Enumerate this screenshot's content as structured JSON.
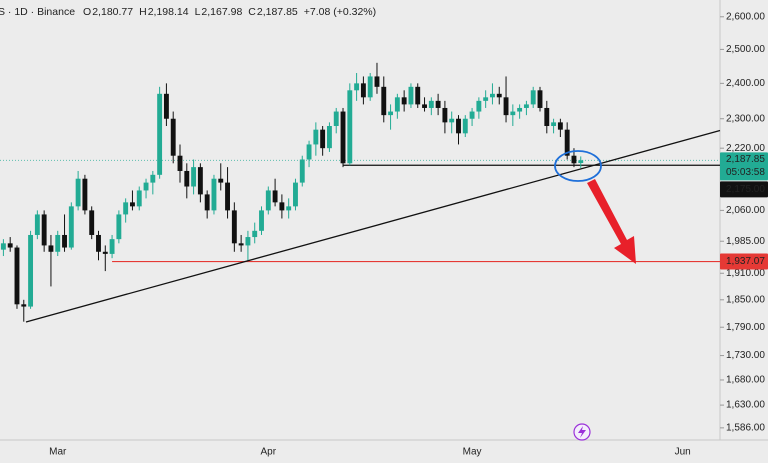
{
  "chart_data": {
    "type": "candlestick",
    "header": {
      "symbol": "S · 1D · Binance",
      "items": [
        {
          "key": "O",
          "value": "2,180.77"
        },
        {
          "key": "H",
          "value": "2,198.14"
        },
        {
          "key": "L",
          "value": "2,167.98"
        },
        {
          "key": "C",
          "value": "2,187.85"
        }
      ],
      "change": "+7.08 (+0.32%)"
    },
    "categories": [
      null,
      null,
      null,
      null,
      null,
      null,
      null,
      null,
      "Mar",
      null,
      null,
      null,
      null,
      null,
      null,
      null,
      null,
      null,
      null,
      null,
      null,
      null,
      null,
      null,
      null,
      null,
      null,
      null,
      null,
      null,
      null,
      null,
      null,
      null,
      null,
      null,
      null,
      null,
      null,
      "Apr",
      null,
      null,
      null,
      null,
      null,
      null,
      null,
      null,
      null,
      null,
      null,
      null,
      null,
      null,
      null,
      null,
      null,
      null,
      null,
      null,
      null,
      null,
      null,
      null,
      null,
      null,
      null,
      null,
      null,
      "May",
      null,
      null,
      null,
      null,
      null,
      null,
      null,
      null,
      null,
      null,
      null,
      null,
      null,
      null,
      null,
      null,
      null,
      null,
      null,
      null,
      null,
      null,
      null,
      null,
      null,
      null,
      null,
      null,
      null,
      null,
      "Jun",
      null,
      null,
      null,
      null,
      null
    ],
    "open": [
      1965,
      1980,
      1970,
      1840,
      1835,
      2000,
      2050,
      1975,
      1960,
      2000,
      1970,
      2070,
      2140,
      2060,
      2000,
      1960,
      1955,
      1990,
      2050,
      2080,
      2070,
      2110,
      2130,
      2150,
      2370,
      2300,
      2200,
      2160,
      2120,
      2170,
      2100,
      2060,
      2140,
      2130,
      2060,
      1980,
      1975,
      1995,
      2010,
      2060,
      2110,
      2080,
      2060,
      2070,
      2130,
      2190,
      2230,
      2270,
      2220,
      2280,
      2320,
      2180,
      2380,
      2400,
      2360,
      2420,
      2390,
      2310,
      2320,
      2360,
      2340,
      2390,
      2340,
      2330,
      2350,
      2330,
      2290,
      2300,
      2260,
      2300,
      2320,
      2350,
      2360,
      2370,
      2360,
      2310,
      2320,
      2330,
      2340,
      2380,
      2330,
      2280,
      2290,
      2270,
      2200,
      2180.77,
      null,
      null,
      null,
      null,
      null,
      null,
      null,
      null,
      null,
      null,
      null,
      null,
      null,
      null,
      null,
      null,
      null,
      null,
      null,
      null
    ],
    "high": [
      1990,
      1995,
      1975,
      1850,
      2010,
      2060,
      2060,
      2000,
      2010,
      2050,
      2080,
      2160,
      2150,
      2070,
      2010,
      1975,
      2000,
      2060,
      2090,
      2110,
      2120,
      2140,
      2160,
      2390,
      2400,
      2320,
      2230,
      2180,
      2190,
      2180,
      2110,
      2150,
      2180,
      2170,
      2080,
      2000,
      2010,
      2030,
      2070,
      2120,
      2140,
      2100,
      2090,
      2140,
      2200,
      2240,
      2290,
      2280,
      2290,
      2330,
      2330,
      2400,
      2430,
      2420,
      2430,
      2460,
      2420,
      2340,
      2370,
      2380,
      2400,
      2400,
      2360,
      2360,
      2370,
      2350,
      2320,
      2310,
      2310,
      2330,
      2360,
      2380,
      2400,
      2390,
      2420,
      2340,
      2340,
      2350,
      2390,
      2390,
      2350,
      2300,
      2300,
      2290,
      2220,
      2198.14,
      null,
      null,
      null,
      null,
      null,
      null,
      null,
      null,
      null,
      null,
      null,
      null,
      null,
      null,
      null,
      null,
      null,
      null,
      null,
      null
    ],
    "low": [
      1950,
      1960,
      1830,
      1802,
      1830,
      1990,
      1960,
      1880,
      1950,
      1960,
      1965,
      2060,
      2050,
      1990,
      1940,
      1915,
      1945,
      1980,
      2030,
      2060,
      2060,
      2090,
      2100,
      2140,
      2280,
      2180,
      2130,
      2090,
      2100,
      2080,
      2040,
      2050,
      2110,
      2040,
      1960,
      1960,
      1937,
      1980,
      2000,
      2050,
      2070,
      2040,
      2040,
      2060,
      2120,
      2170,
      2200,
      2200,
      2210,
      2260,
      2170,
      2175,
      2350,
      2340,
      2350,
      2370,
      2290,
      2270,
      2300,
      2320,
      2330,
      2330,
      2320,
      2310,
      2310,
      2260,
      2260,
      2230,
      2250,
      2280,
      2300,
      2330,
      2340,
      2340,
      2290,
      2280,
      2300,
      2310,
      2330,
      2320,
      2260,
      2260,
      2250,
      2190,
      2170,
      2167.98,
      null,
      null,
      null,
      null,
      null,
      null,
      null,
      null,
      null,
      null,
      null,
      null,
      null,
      null,
      null,
      null,
      null,
      null,
      null,
      null
    ],
    "close": [
      1980,
      1970,
      1840,
      1835,
      2000,
      2050,
      1975,
      1960,
      2000,
      1970,
      2070,
      2140,
      2060,
      2000,
      1960,
      1955,
      1990,
      2050,
      2080,
      2070,
      2110,
      2130,
      2150,
      2370,
      2300,
      2200,
      2160,
      2120,
      2170,
      2100,
      2060,
      2140,
      2130,
      2060,
      1980,
      1975,
      1995,
      2010,
      2060,
      2110,
      2080,
      2060,
      2070,
      2130,
      2190,
      2230,
      2270,
      2220,
      2280,
      2320,
      2180,
      2380,
      2400,
      2360,
      2420,
      2390,
      2310,
      2320,
      2360,
      2340,
      2390,
      2340,
      2330,
      2350,
      2330,
      2290,
      2300,
      2260,
      2300,
      2320,
      2350,
      2360,
      2370,
      2360,
      2310,
      2320,
      2330,
      2340,
      2380,
      2330,
      2280,
      2290,
      2270,
      2200,
      2180,
      2187.85,
      null,
      null,
      null,
      null,
      null,
      null,
      null,
      null,
      null,
      null,
      null,
      null,
      null,
      null,
      null,
      null,
      null,
      null,
      null,
      null
    ],
    "up_color": "#22ab94",
    "down_color": "#111111",
    "log_scale": true,
    "ylim": [
      1563,
      2653
    ],
    "yticks": [
      {
        "value": 2600,
        "label": "2,600.00"
      },
      {
        "value": 2500,
        "label": "2,500.00"
      },
      {
        "value": 2400,
        "label": "2,400.00"
      },
      {
        "value": 2300,
        "label": "2,300.00"
      },
      {
        "value": 2220,
        "label": "2,220.00"
      },
      {
        "value": 2060,
        "label": "2,060.00"
      },
      {
        "value": 1985,
        "label": "1,985.00"
      },
      {
        "value": 1910,
        "label": "1,910.00"
      },
      {
        "value": 1850,
        "label": "1,850.00"
      },
      {
        "value": 1790,
        "label": "1,790.00"
      },
      {
        "value": 1730,
        "label": "1,730.00"
      },
      {
        "value": 1680,
        "label": "1,680.00"
      },
      {
        "value": 1630,
        "label": "1,630.00"
      },
      {
        "value": 1586,
        "label": "1,586.00"
      }
    ],
    "last_price": {
      "value": 2187.85,
      "label": "2,187.85",
      "countdown": "05:03:58",
      "color": "#22ab94"
    },
    "hlines": [
      {
        "value": 2175,
        "label": "2,175.00",
        "color": "#111111",
        "start": 50
      },
      {
        "value": 1937.07,
        "label": "1,937.07",
        "color": "#e53935",
        "start": 16
      }
    ]
  }
}
